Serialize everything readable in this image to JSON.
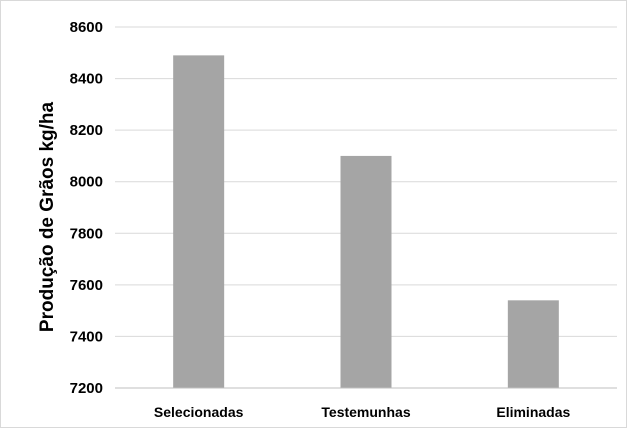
{
  "chart_data": {
    "type": "bar",
    "title": "",
    "xlabel": "",
    "ylabel": "Produção de Grãos kg/ha",
    "categories": [
      "Selecionadas",
      "Testemunhas",
      "Eliminadas"
    ],
    "values": [
      8490,
      8100,
      7540
    ],
    "ylim": [
      7200,
      8600
    ],
    "yticks": [
      7200,
      7400,
      7600,
      7800,
      8000,
      8200,
      8400,
      8600
    ],
    "grid": true,
    "legend": "none",
    "colors": {
      "bar": "#a5a5a5",
      "grid": "#d9d9d9",
      "axis": "#bfbfbf"
    }
  }
}
